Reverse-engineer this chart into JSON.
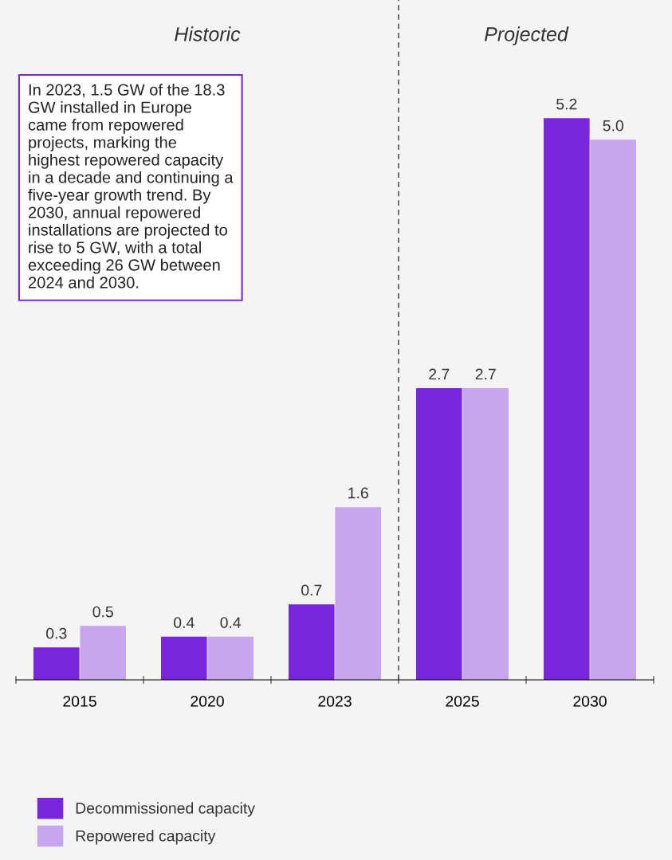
{
  "chart_data": {
    "type": "bar",
    "categories": [
      "2015",
      "2020",
      "2023",
      "2025",
      "2030"
    ],
    "series": [
      {
        "name": "Decommissioned capacity",
        "color": "#7a26dc",
        "values": [
          0.3,
          0.4,
          0.7,
          2.7,
          5.2
        ],
        "value_labels": [
          "0.3",
          "0.4",
          "0.7",
          "2.7",
          "5.2"
        ]
      },
      {
        "name": "Repowered capacity",
        "color": "#c8a6ee",
        "values": [
          0.5,
          0.4,
          1.6,
          2.7,
          5.0
        ],
        "value_labels": [
          "0.5",
          "0.4",
          "1.6",
          "2.7",
          "5.0"
        ]
      }
    ],
    "tick_labels": "x",
    "legend": "bottom left",
    "grid": false,
    "annotations": [
      "Historic",
      "Projected",
      "In 2023, 1.5 GW of the 18.3\nGW installed in Europe\ncame from repowered\nprojects, marking the\nhighest repowered capacity\nin a decade and continuing a\nfive-year growth trend. By\n2030, annual repowered\ninstallations are projected to\nrise to 5 GW, with a total\nexceeding 26 GW between\n2024 and 2030."
    ]
  }
}
